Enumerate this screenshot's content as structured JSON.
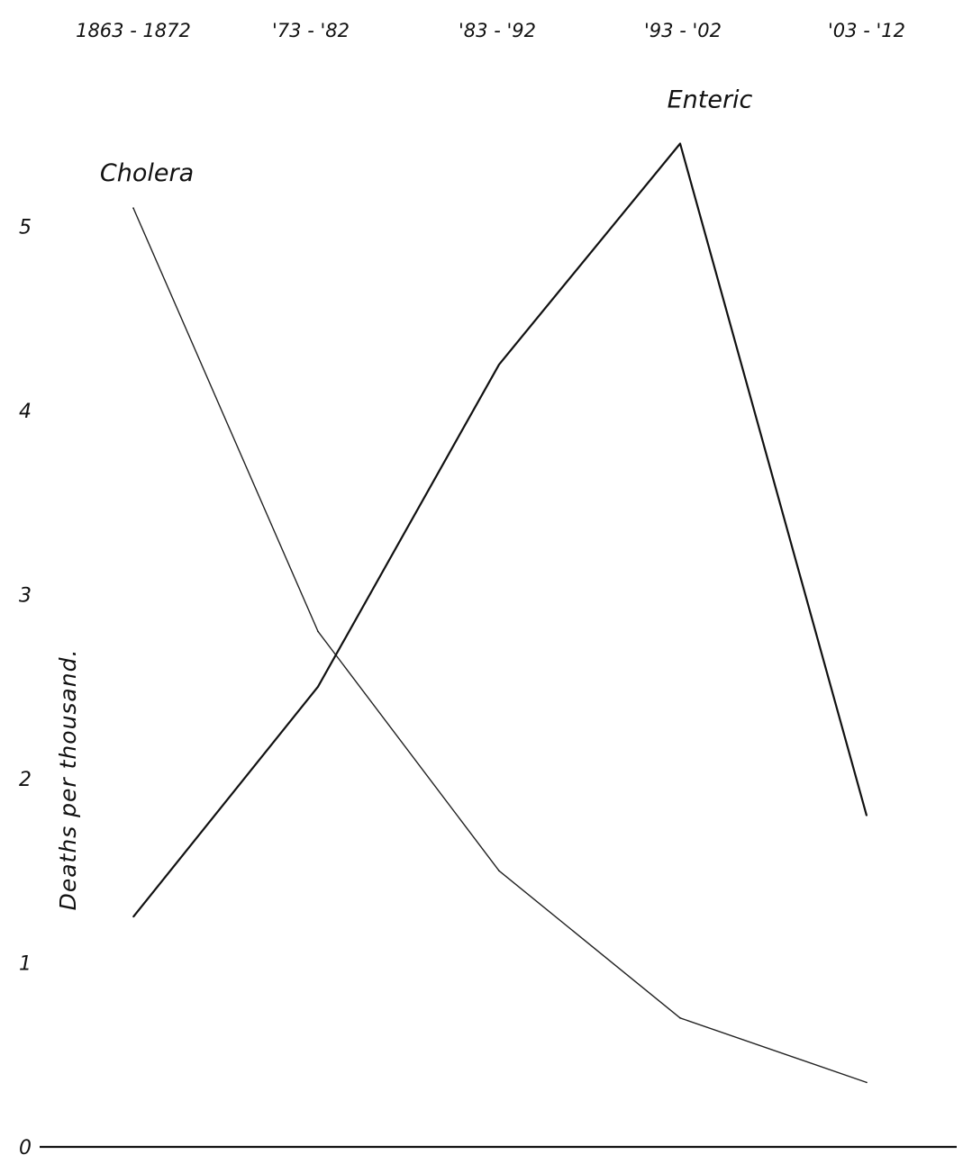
{
  "chart_data": {
    "type": "line",
    "categories": [
      "1863 - 1872",
      "'73 - '82",
      "'83 - '92",
      "'93 - '02",
      "'03 - '12"
    ],
    "series": [
      {
        "name": "Cholera",
        "values": [
          5.1,
          2.8,
          1.5,
          0.7,
          0.35
        ]
      },
      {
        "name": "Enteric",
        "values": [
          1.25,
          2.5,
          4.25,
          5.45,
          1.8
        ]
      }
    ],
    "title": "",
    "xlabel": "",
    "ylabel": "Deaths per thousand.",
    "ylim": [
      0,
      5
    ],
    "yticks": [
      "0",
      "1",
      "2",
      "3",
      "4",
      "5"
    ],
    "x_axis_position": "top",
    "legend": "direct labels at series",
    "grid": false,
    "colors": {
      "ink": "#111111",
      "background": "#ffffff"
    }
  }
}
